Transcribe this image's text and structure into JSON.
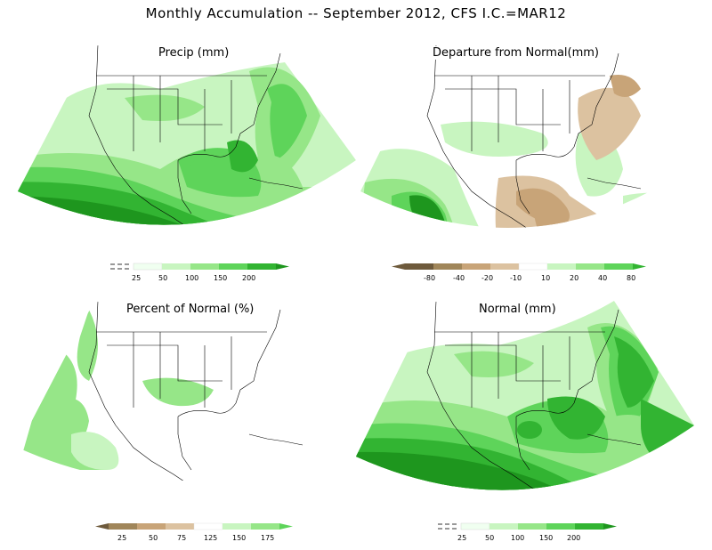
{
  "title": "Monthly Accumulation -- September 2012, CFS I.C.=MAR12",
  "colors": {
    "green_lightest": "#f0fff0",
    "green_light": "#c8f5c0",
    "green_mid": "#96e688",
    "green_med": "#5ed45a",
    "green_dark": "#32b432",
    "green_darkest": "#1e961e",
    "brown_lightest": "#dcc2a0",
    "brown_light": "#c8a478",
    "brown_dark": "#a0865a",
    "brown_darkest": "#6e5a3c",
    "coast": "#000000"
  },
  "panels": {
    "precip": {
      "title": "Precip (mm)",
      "legend": {
        "ticks": [
          "25",
          "50",
          "100",
          "150",
          "200"
        ]
      }
    },
    "departure": {
      "title": "Departure from Normal(mm)",
      "legend": {
        "ticks": [
          "-80",
          "-40",
          "-20",
          "-10",
          "10",
          "20",
          "40",
          "80"
        ]
      }
    },
    "percent": {
      "title": "Percent of Normal (%)",
      "legend": {
        "ticks": [
          "25",
          "50",
          "75",
          "125",
          "150",
          "175"
        ]
      }
    },
    "normal": {
      "title": "Normal (mm)",
      "legend": {
        "ticks": [
          "25",
          "50",
          "100",
          "150",
          "200"
        ]
      }
    }
  }
}
